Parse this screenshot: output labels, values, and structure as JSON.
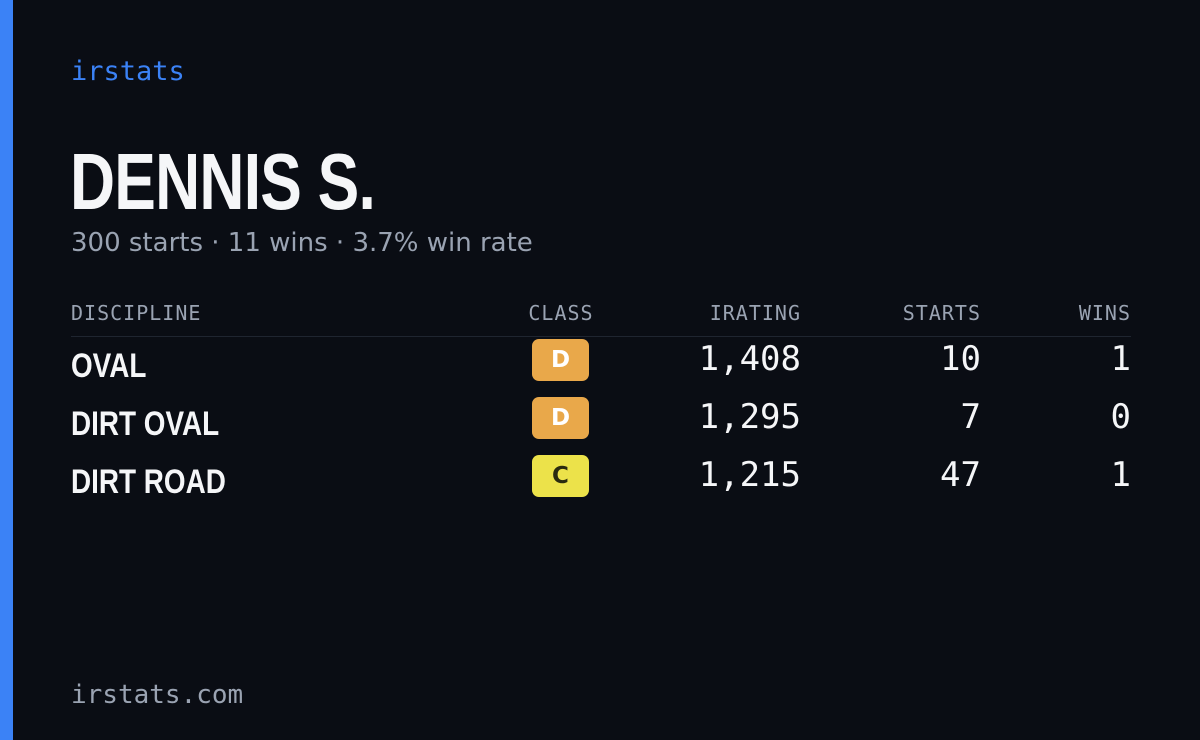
{
  "brand": "irstats",
  "driver": {
    "name": "DENNIS S.",
    "summary": "300 starts · 11 wins · 3.7% win rate"
  },
  "table": {
    "headers": {
      "discipline": "DISCIPLINE",
      "class": "CLASS",
      "irating": "IRATING",
      "starts": "STARTS",
      "wins": "WINS"
    },
    "rows": [
      {
        "discipline": "OVAL",
        "class": "D",
        "class_color": "#e9a84a",
        "irating": "1,408",
        "starts": "10",
        "wins": "1"
      },
      {
        "discipline": "DIRT OVAL",
        "class": "D",
        "class_color": "#e9a84a",
        "irating": "1,295",
        "starts": "7",
        "wins": "0"
      },
      {
        "discipline": "DIRT ROAD",
        "class": "C",
        "class_color": "#ece24a",
        "irating": "1,215",
        "starts": "47",
        "wins": "1"
      }
    ]
  },
  "footer": "irstats.com",
  "colors": {
    "background": "#0a0d14",
    "accent": "#3b82f6",
    "text_primary": "#f5f6f8",
    "text_muted": "#9aa3b2"
  }
}
